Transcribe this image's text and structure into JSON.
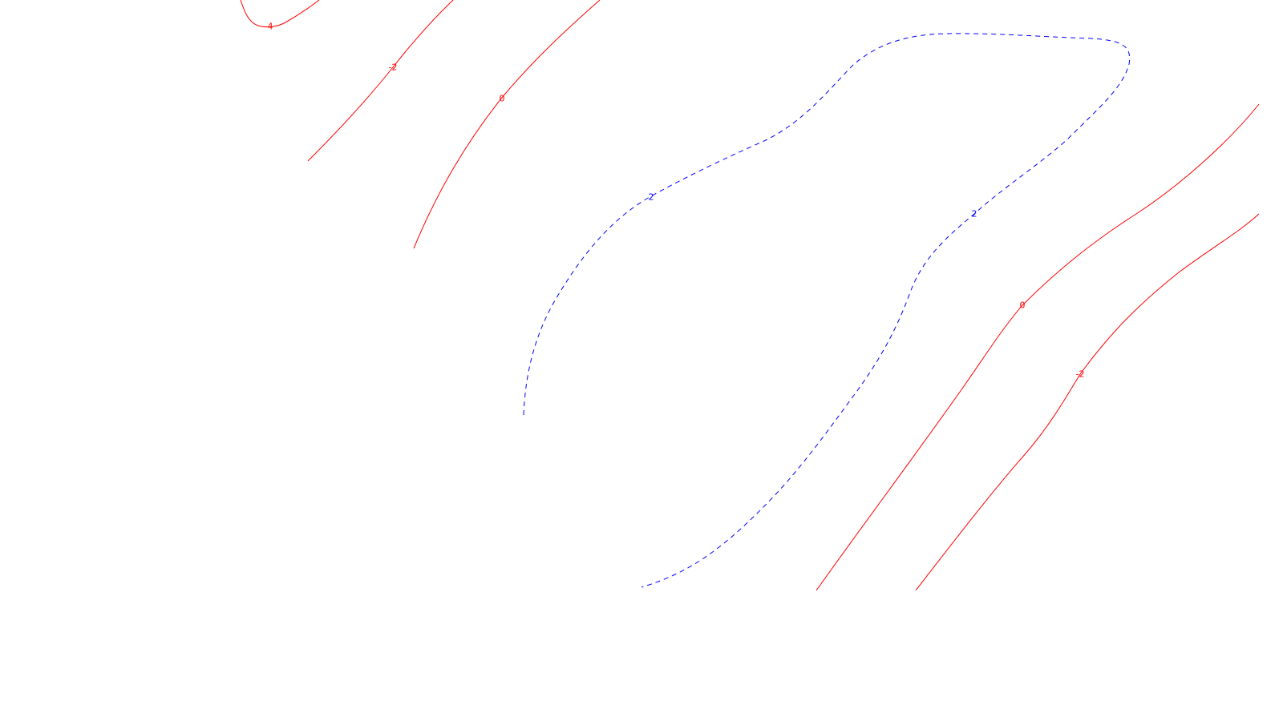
{
  "chart_data": {
    "type": "contour",
    "title": "",
    "xlabel": "",
    "ylabel": "",
    "legend": "none",
    "grid": false,
    "colors": {
      "negative": "#ff0000",
      "positive": "#0000ff"
    },
    "contours": [
      {
        "id": "c-neg4",
        "level": -4,
        "label": "-4",
        "style": "solid",
        "color": "#ff0000"
      },
      {
        "id": "c-neg2-a",
        "level": -2,
        "label": "-2",
        "style": "solid",
        "color": "#ff0000"
      },
      {
        "id": "c-zero-a",
        "level": 0,
        "label": "0",
        "style": "solid",
        "color": "#ff0000"
      },
      {
        "id": "c-pos2",
        "level": 2,
        "label": "2",
        "style": "dashed",
        "color": "#0000ff"
      },
      {
        "id": "c-zero-b",
        "level": 0,
        "label": "0",
        "style": "solid",
        "color": "#ff0000"
      },
      {
        "id": "c-neg2-b",
        "level": -2,
        "label": "-2",
        "style": "solid",
        "color": "#ff0000"
      }
    ]
  }
}
